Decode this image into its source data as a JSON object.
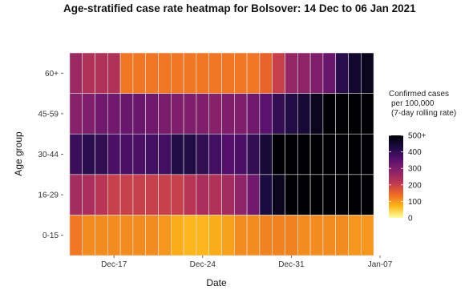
{
  "chart_data": {
    "type": "heatmap",
    "title": "Age-stratified case rate heatmap for Bolsover: 14 Dec to 06 Jan 2021",
    "xlabel": "Date",
    "ylabel": "Age group",
    "x_tick_labels": [
      "Dec-17",
      "Dec-24",
      "Dec-31",
      "Jan-07"
    ],
    "y_categories": [
      "0-15",
      "16-29",
      "30-44",
      "45-59",
      "60+"
    ],
    "dates": [
      "2020-12-14",
      "2020-12-15",
      "2020-12-16",
      "2020-12-17",
      "2020-12-18",
      "2020-12-19",
      "2020-12-20",
      "2020-12-21",
      "2020-12-22",
      "2020-12-23",
      "2020-12-24",
      "2020-12-25",
      "2020-12-26",
      "2020-12-27",
      "2020-12-28",
      "2020-12-29",
      "2020-12-30",
      "2020-12-31",
      "2021-01-01",
      "2021-01-02",
      "2021-01-03",
      "2021-01-04",
      "2021-01-05",
      "2021-01-06"
    ],
    "x_range": [
      "2020-12-13",
      "2021-01-07"
    ],
    "values": {
      "60+": [
        260,
        230,
        230,
        230,
        130,
        130,
        130,
        130,
        130,
        130,
        130,
        130,
        130,
        130,
        130,
        150,
        200,
        270,
        280,
        300,
        330,
        410,
        450,
        470
      ],
      "45-59": [
        290,
        300,
        320,
        320,
        330,
        330,
        320,
        310,
        300,
        300,
        300,
        290,
        300,
        300,
        320,
        350,
        400,
        420,
        440,
        470,
        500,
        500,
        500,
        500
      ],
      "30-44": [
        390,
        410,
        400,
        370,
        370,
        370,
        380,
        380,
        420,
        420,
        400,
        380,
        360,
        370,
        400,
        440,
        500,
        500,
        500,
        500,
        500,
        500,
        500,
        500
      ],
      "16-29": [
        250,
        240,
        220,
        200,
        200,
        200,
        200,
        200,
        200,
        220,
        240,
        230,
        250,
        280,
        320,
        430,
        470,
        500,
        500,
        500,
        500,
        500,
        500,
        500
      ],
      "0-15": [
        130,
        110,
        110,
        110,
        110,
        110,
        110,
        100,
        80,
        70,
        70,
        80,
        90,
        110,
        110,
        120,
        120,
        120,
        110,
        110,
        110,
        110,
        100,
        100
      ]
    },
    "color_scale": {
      "min": 0,
      "max": 500,
      "stops": [
        "#fcffa4",
        "#fbb61a",
        "#ed6925",
        "#bc3754",
        "#89226a",
        "#56106e",
        "#1b0c41",
        "#000004"
      ],
      "tick_values": [
        0,
        100,
        200,
        300,
        400,
        500
      ],
      "tick_labels": [
        "0",
        "100",
        "200",
        "300",
        "400",
        "500+"
      ]
    },
    "legend_title": [
      "Confirmed cases",
      "per 100,000",
      "(7-day rolling rate)"
    ],
    "legend_position": "right",
    "grid": true
  }
}
